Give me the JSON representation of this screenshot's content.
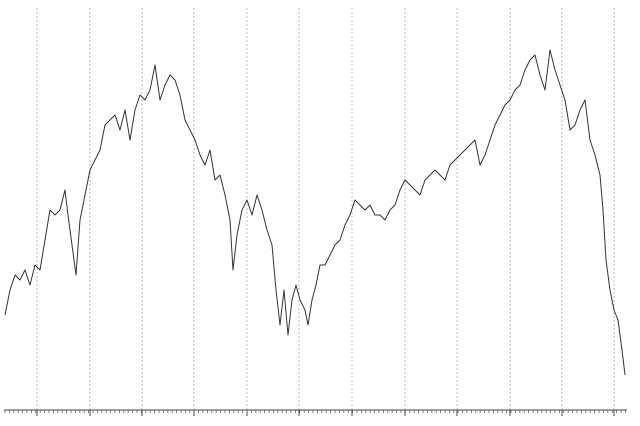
{
  "chart_data": {
    "type": "line",
    "color": "#333333",
    "grid": true,
    "xlim": [
      0,
      640
    ],
    "ylim": [
      0,
      410
    ],
    "xticks": [
      37,
      90,
      142,
      194,
      247,
      299,
      352,
      405,
      457,
      510,
      562,
      614
    ],
    "x": [
      5,
      10,
      15,
      20,
      25,
      30,
      35,
      40,
      45,
      50,
      55,
      60,
      65,
      68,
      72,
      76,
      80,
      85,
      90,
      95,
      100,
      105,
      110,
      115,
      120,
      125,
      130,
      135,
      140,
      145,
      150,
      155,
      160,
      165,
      170,
      175,
      180,
      185,
      190,
      195,
      200,
      205,
      210,
      215,
      220,
      225,
      230,
      233,
      237,
      242,
      247,
      252,
      257,
      262,
      267,
      272,
      276,
      280,
      284,
      288,
      292,
      296,
      300,
      305,
      308,
      312,
      316,
      320,
      325,
      330,
      335,
      340,
      345,
      350,
      355,
      360,
      365,
      370,
      375,
      380,
      385,
      390,
      395,
      400,
      405,
      410,
      415,
      420,
      425,
      430,
      435,
      440,
      445,
      450,
      455,
      460,
      465,
      470,
      475,
      480,
      485,
      490,
      495,
      500,
      505,
      510,
      515,
      520,
      525,
      530,
      535,
      540,
      545,
      550,
      555,
      560,
      565,
      570,
      575,
      580,
      585,
      590,
      595,
      600,
      603,
      606,
      610,
      614,
      618,
      622,
      625
    ],
    "values": [
      95,
      120,
      135,
      130,
      140,
      125,
      145,
      140,
      170,
      200,
      195,
      200,
      220,
      195,
      165,
      135,
      190,
      215,
      240,
      250,
      260,
      285,
      290,
      295,
      280,
      300,
      270,
      300,
      315,
      310,
      320,
      345,
      310,
      325,
      335,
      330,
      315,
      290,
      280,
      270,
      255,
      245,
      260,
      230,
      235,
      215,
      190,
      140,
      175,
      200,
      210,
      195,
      215,
      200,
      180,
      165,
      120,
      85,
      120,
      75,
      110,
      125,
      110,
      100,
      85,
      110,
      125,
      145,
      145,
      155,
      165,
      170,
      185,
      195,
      210,
      205,
      200,
      205,
      195,
      195,
      190,
      200,
      205,
      220,
      230,
      225,
      220,
      215,
      230,
      235,
      240,
      235,
      230,
      245,
      250,
      255,
      260,
      265,
      270,
      245,
      255,
      270,
      285,
      295,
      305,
      310,
      320,
      325,
      340,
      350,
      355,
      335,
      320,
      360,
      340,
      325,
      310,
      280,
      285,
      300,
      310,
      270,
      255,
      235,
      200,
      150,
      120,
      100,
      90,
      60,
      35
    ]
  }
}
